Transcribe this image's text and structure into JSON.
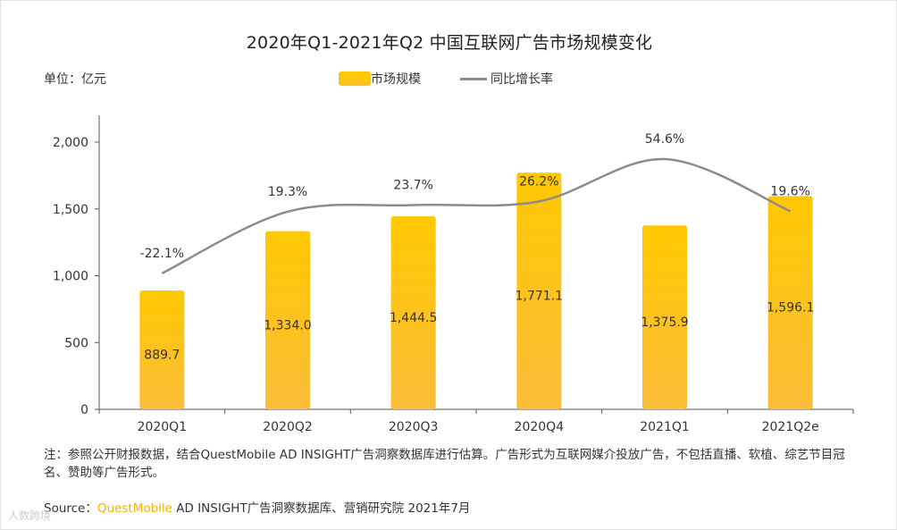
{
  "unit_label": "单位：亿元",
  "legend": {
    "bar_label": "市场规模",
    "line_label": "同比增长率"
  },
  "note_text": "注：参照公开财报数据，结合QuestMobile AD INSIGHT广告洞察数据库进行估算。广告形式为互联网媒介投放广告，不包括直播、软植、综艺节目冠名、赞助等广告形式。",
  "source": {
    "prefix": "Source：",
    "brand": "QuestMobile",
    "rest": " AD INSIGHT广告洞察数据库、营销研究院 2021年7月"
  },
  "watermark_text": "人数跨境",
  "colors": {
    "bar_top": "#ffc800",
    "bar_bottom": "#fbbd3a",
    "line": "#8c8c8c",
    "axis": "#555555"
  },
  "chart_data": {
    "type": "bar",
    "title": "2020年Q1-2021年Q2 中国互联网广告市场规模变化",
    "categories": [
      "2020Q1",
      "2020Q2",
      "2020Q3",
      "2020Q4",
      "2021Q1",
      "2021Q2e"
    ],
    "series": [
      {
        "name": "市场规模",
        "type": "bar",
        "values": [
          889.7,
          1334.0,
          1444.5,
          1771.1,
          1375.9,
          1596.1
        ]
      },
      {
        "name": "同比增长率",
        "type": "line",
        "values": [
          -22.1,
          19.3,
          23.7,
          26.2,
          54.6,
          19.6
        ]
      }
    ],
    "bar_labels": [
      "889.7",
      "1,334.0",
      "1,444.5",
      "1,771.1",
      "1,375.9",
      "1,596.1"
    ],
    "line_labels": [
      "-22.1%",
      "19.3%",
      "23.7%",
      "26.2%",
      "54.6%",
      "19.6%"
    ],
    "ylim": [
      0,
      2000
    ],
    "yticks": [
      0,
      500,
      1000,
      1500,
      2000
    ],
    "ytick_labels": [
      "0",
      "500",
      "1,000",
      "1,500",
      "2,000"
    ],
    "secondary_axis_printed": false,
    "grid": false,
    "legend_position": "top-center"
  }
}
